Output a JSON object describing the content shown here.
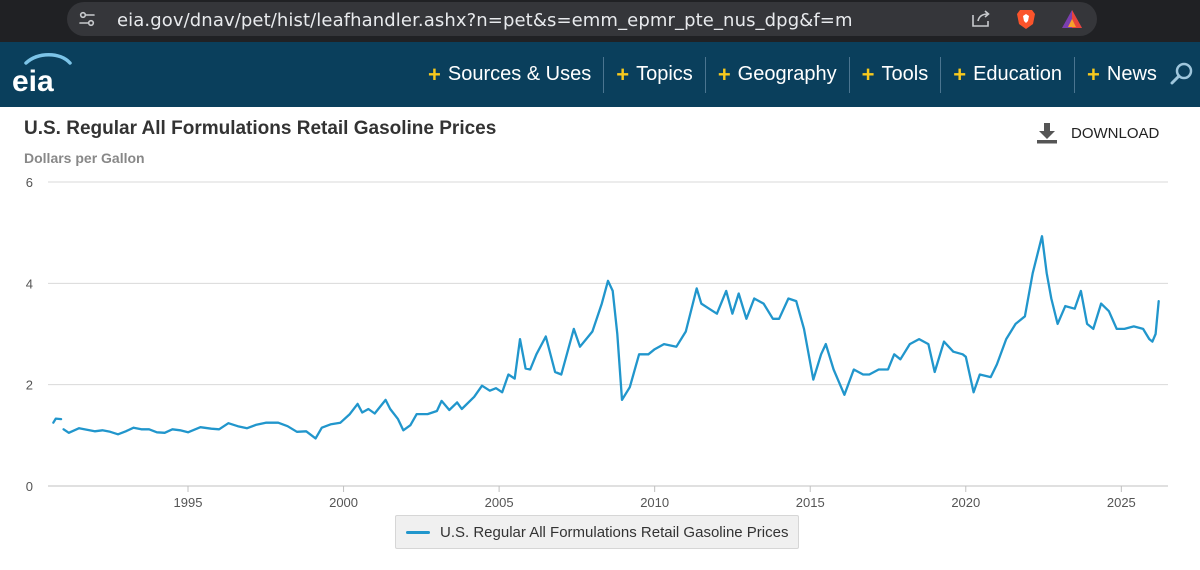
{
  "browser": {
    "url": "eia.gov/dnav/pet/hist/leafhandler.ashx?n=pet&s=emm_epmr_pte_nus_dpg&f=m",
    "icons": [
      "site-settings-icon",
      "share-icon",
      "brave-shield-icon",
      "brave-rewards-icon"
    ]
  },
  "header": {
    "logo_text": "eia",
    "nav": [
      {
        "label": "Sources & Uses"
      },
      {
        "label": "Topics"
      },
      {
        "label": "Geography"
      },
      {
        "label": "Tools"
      },
      {
        "label": "Education"
      },
      {
        "label": "News"
      }
    ],
    "colors": {
      "background": "#0a3f5c",
      "plus": "#f8c91d"
    }
  },
  "page": {
    "title": "U.S. Regular All Formulations Retail Gasoline Prices",
    "units": "Dollars per Gallon",
    "download_label": "DOWNLOAD"
  },
  "chart_data": {
    "type": "line",
    "title": "U.S. Regular All Formulations Retail Gasoline Prices",
    "ylabel": "Dollars per Gallon",
    "ylim": [
      0,
      6
    ],
    "xlim": [
      1990.5,
      2026.5
    ],
    "yticks": [
      "0",
      "2",
      "4",
      "6"
    ],
    "xticks": [
      "1995",
      "2000",
      "2005",
      "2010",
      "2015",
      "2020",
      "2025"
    ],
    "grid": "horizontal",
    "legend_position": "bottom-center",
    "series": [
      {
        "name": "U.S. Regular All Formulations Retail Gasoline Prices",
        "color": "#2196cc",
        "points": [
          [
            1990.67,
            1.25
          ],
          [
            1990.75,
            1.33
          ],
          [
            1990.92,
            1.32
          ],
          [
            1991.0,
            1.12
          ],
          [
            1991.17,
            1.05
          ],
          [
            1991.5,
            1.14
          ],
          [
            1991.75,
            1.11
          ],
          [
            1992.0,
            1.08
          ],
          [
            1992.25,
            1.1
          ],
          [
            1992.5,
            1.07
          ],
          [
            1992.75,
            1.02
          ],
          [
            1993.0,
            1.08
          ],
          [
            1993.25,
            1.15
          ],
          [
            1993.5,
            1.12
          ],
          [
            1993.75,
            1.12
          ],
          [
            1994.0,
            1.06
          ],
          [
            1994.25,
            1.05
          ],
          [
            1994.5,
            1.12
          ],
          [
            1994.75,
            1.1
          ],
          [
            1995.0,
            1.06
          ],
          [
            1995.4,
            1.16
          ],
          [
            1995.75,
            1.13
          ],
          [
            1996.0,
            1.12
          ],
          [
            1996.3,
            1.24
          ],
          [
            1996.6,
            1.18
          ],
          [
            1996.9,
            1.14
          ],
          [
            1997.2,
            1.21
          ],
          [
            1997.5,
            1.25
          ],
          [
            1997.9,
            1.25
          ],
          [
            1998.2,
            1.18
          ],
          [
            1998.5,
            1.07
          ],
          [
            1998.8,
            1.08
          ],
          [
            1999.1,
            0.94
          ],
          [
            1999.3,
            1.15
          ],
          [
            1999.6,
            1.22
          ],
          [
            1999.9,
            1.25
          ],
          [
            2000.2,
            1.42
          ],
          [
            2000.45,
            1.62
          ],
          [
            2000.6,
            1.45
          ],
          [
            2000.8,
            1.52
          ],
          [
            2001.0,
            1.43
          ],
          [
            2001.35,
            1.7
          ],
          [
            2001.5,
            1.52
          ],
          [
            2001.75,
            1.32
          ],
          [
            2001.92,
            1.1
          ],
          [
            2002.15,
            1.2
          ],
          [
            2002.35,
            1.42
          ],
          [
            2002.7,
            1.42
          ],
          [
            2003.0,
            1.48
          ],
          [
            2003.15,
            1.68
          ],
          [
            2003.4,
            1.5
          ],
          [
            2003.65,
            1.65
          ],
          [
            2003.8,
            1.52
          ],
          [
            2004.2,
            1.76
          ],
          [
            2004.45,
            1.98
          ],
          [
            2004.7,
            1.88
          ],
          [
            2004.9,
            1.93
          ],
          [
            2005.1,
            1.85
          ],
          [
            2005.3,
            2.2
          ],
          [
            2005.5,
            2.12
          ],
          [
            2005.67,
            2.9
          ],
          [
            2005.85,
            2.32
          ],
          [
            2006.0,
            2.3
          ],
          [
            2006.2,
            2.6
          ],
          [
            2006.5,
            2.95
          ],
          [
            2006.8,
            2.25
          ],
          [
            2007.0,
            2.2
          ],
          [
            2007.4,
            3.1
          ],
          [
            2007.6,
            2.75
          ],
          [
            2007.8,
            2.9
          ],
          [
            2008.0,
            3.05
          ],
          [
            2008.3,
            3.6
          ],
          [
            2008.5,
            4.05
          ],
          [
            2008.65,
            3.85
          ],
          [
            2008.8,
            3.0
          ],
          [
            2008.95,
            1.7
          ],
          [
            2009.2,
            1.95
          ],
          [
            2009.5,
            2.6
          ],
          [
            2009.8,
            2.6
          ],
          [
            2010.0,
            2.7
          ],
          [
            2010.3,
            2.8
          ],
          [
            2010.7,
            2.75
          ],
          [
            2011.0,
            3.05
          ],
          [
            2011.35,
            3.9
          ],
          [
            2011.5,
            3.6
          ],
          [
            2011.75,
            3.5
          ],
          [
            2012.0,
            3.4
          ],
          [
            2012.3,
            3.85
          ],
          [
            2012.5,
            3.4
          ],
          [
            2012.7,
            3.8
          ],
          [
            2012.95,
            3.3
          ],
          [
            2013.2,
            3.7
          ],
          [
            2013.5,
            3.6
          ],
          [
            2013.8,
            3.3
          ],
          [
            2014.0,
            3.3
          ],
          [
            2014.3,
            3.7
          ],
          [
            2014.55,
            3.65
          ],
          [
            2014.8,
            3.1
          ],
          [
            2015.1,
            2.1
          ],
          [
            2015.35,
            2.6
          ],
          [
            2015.5,
            2.8
          ],
          [
            2015.75,
            2.3
          ],
          [
            2016.1,
            1.8
          ],
          [
            2016.4,
            2.3
          ],
          [
            2016.7,
            2.2
          ],
          [
            2016.9,
            2.2
          ],
          [
            2017.2,
            2.3
          ],
          [
            2017.5,
            2.3
          ],
          [
            2017.7,
            2.6
          ],
          [
            2017.9,
            2.5
          ],
          [
            2018.2,
            2.8
          ],
          [
            2018.5,
            2.9
          ],
          [
            2018.8,
            2.8
          ],
          [
            2019.0,
            2.25
          ],
          [
            2019.3,
            2.85
          ],
          [
            2019.6,
            2.65
          ],
          [
            2019.9,
            2.6
          ],
          [
            2020.0,
            2.55
          ],
          [
            2020.25,
            1.85
          ],
          [
            2020.45,
            2.2
          ],
          [
            2020.8,
            2.15
          ],
          [
            2021.0,
            2.4
          ],
          [
            2021.3,
            2.9
          ],
          [
            2021.6,
            3.2
          ],
          [
            2021.9,
            3.35
          ],
          [
            2022.15,
            4.2
          ],
          [
            2022.45,
            4.93
          ],
          [
            2022.6,
            4.2
          ],
          [
            2022.75,
            3.7
          ],
          [
            2022.95,
            3.2
          ],
          [
            2023.2,
            3.55
          ],
          [
            2023.5,
            3.5
          ],
          [
            2023.7,
            3.85
          ],
          [
            2023.9,
            3.2
          ],
          [
            2024.1,
            3.1
          ],
          [
            2024.35,
            3.6
          ],
          [
            2024.6,
            3.45
          ],
          [
            2024.85,
            3.1
          ],
          [
            2025.1,
            3.1
          ],
          [
            2025.4,
            3.15
          ],
          [
            2025.7,
            3.1
          ],
          [
            2025.9,
            2.9
          ],
          [
            2026.0,
            2.85
          ],
          [
            2026.1,
            3.0
          ],
          [
            2026.2,
            3.65
          ]
        ]
      }
    ]
  }
}
